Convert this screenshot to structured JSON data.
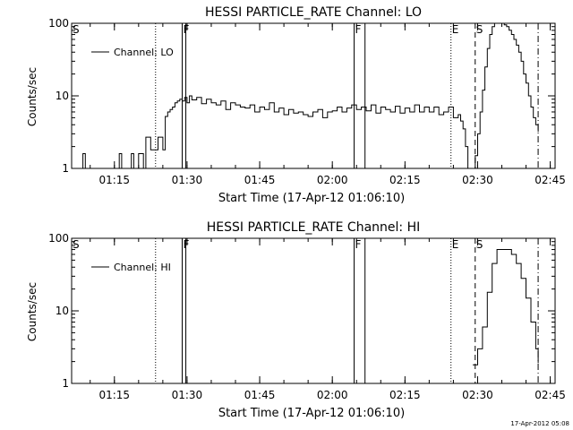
{
  "footer": {
    "timestamp": "17-Apr-2012 05:08"
  },
  "chart_data": [
    {
      "type": "line",
      "title": "HESSI PARTICLE_RATE Channel: LO",
      "xlabel": "Start Time (17-Apr-12 01:06:10)",
      "ylabel": "Counts/sec",
      "y_scale": "log",
      "ylim": [
        1,
        100
      ],
      "xlim": [
        "01:06:10",
        "02:46:00"
      ],
      "x_ticks": [
        "01:15",
        "01:30",
        "01:45",
        "02:00",
        "02:15",
        "02:30",
        "02:45"
      ],
      "y_ticks": [
        "1",
        "10",
        "100"
      ],
      "legend": {
        "entries": [
          "Channel: LO"
        ],
        "position": "top-left"
      },
      "markers": [
        {
          "label": "S",
          "x": "01:06:10",
          "style": "solid"
        },
        {
          "label": "",
          "x": "01:23:30",
          "style": "dotted"
        },
        {
          "label": "F",
          "x": "01:29:00",
          "style": "solid"
        },
        {
          "label": "",
          "x": "01:29:45",
          "style": "solid"
        },
        {
          "label": "F",
          "x": "02:04:30",
          "style": "solid"
        },
        {
          "label": "",
          "x": "02:06:45",
          "style": "solid"
        },
        {
          "label": "E",
          "x": "02:24:30",
          "style": "dotted"
        },
        {
          "label": "S",
          "x": "02:29:30",
          "style": "dashed"
        },
        {
          "label": "",
          "x": "02:42:30",
          "style": "dashdot"
        }
      ],
      "series": [
        {
          "name": "Channel: LO",
          "x": [
            "01:06:10",
            "01:07:00",
            "01:07:30",
            "01:08:00",
            "01:08:30",
            "01:09:00",
            "01:09:30",
            "01:10:00",
            "01:10:30",
            "01:11:00",
            "01:11:30",
            "01:12:00",
            "01:12:30",
            "01:13:00",
            "01:13:30",
            "01:14:00",
            "01:14:30",
            "01:15:00",
            "01:15:30",
            "01:16:00",
            "01:16:30",
            "01:17:00",
            "01:17:30",
            "01:18:00",
            "01:18:30",
            "01:19:00",
            "01:19:30",
            "01:20:00",
            "01:21:00",
            "01:21:30",
            "01:22:00",
            "01:22:30",
            "01:23:00",
            "01:23:30",
            "01:24:00",
            "01:24:30",
            "01:25:00",
            "01:25:30",
            "01:26:00",
            "01:26:30",
            "01:27:00",
            "01:27:30",
            "01:28:00",
            "01:28:30",
            "01:29:00",
            "01:29:30",
            "01:30:00",
            "01:30:30",
            "01:31:00",
            "01:32:00",
            "01:33:00",
            "01:34:00",
            "01:35:00",
            "01:36:00",
            "01:37:00",
            "01:38:00",
            "01:39:00",
            "01:40:00",
            "01:41:00",
            "01:42:00",
            "01:43:00",
            "01:44:00",
            "01:45:00",
            "01:46:00",
            "01:47:00",
            "01:48:00",
            "01:49:00",
            "01:50:00",
            "01:51:00",
            "01:52:00",
            "01:53:00",
            "01:54:00",
            "01:55:00",
            "01:56:00",
            "01:57:00",
            "01:58:00",
            "01:59:00",
            "02:00:00",
            "02:01:00",
            "02:02:00",
            "02:03:00",
            "02:04:00",
            "02:05:00",
            "02:06:00",
            "02:07:00",
            "02:08:00",
            "02:09:00",
            "02:10:00",
            "02:11:00",
            "02:12:00",
            "02:13:00",
            "02:14:00",
            "02:15:00",
            "02:16:00",
            "02:17:00",
            "02:18:00",
            "02:19:00",
            "02:20:00",
            "02:21:00",
            "02:22:00",
            "02:23:00",
            "02:24:00",
            "02:25:00",
            "02:26:00",
            "02:26:30",
            "02:27:00",
            "02:27:30",
            "02:28:00",
            "02:28:30",
            "02:29:00",
            "02:29:30",
            "02:30:00",
            "02:30:30",
            "02:31:00",
            "02:31:30",
            "02:32:00",
            "02:32:30",
            "02:33:00",
            "02:33:30",
            "02:34:00",
            "02:34:30",
            "02:35:00",
            "02:35:30",
            "02:36:00",
            "02:36:30",
            "02:37:00",
            "02:37:30",
            "02:38:00",
            "02:38:30",
            "02:39:00",
            "02:39:30",
            "02:40:00",
            "02:40:30",
            "02:41:00",
            "02:41:30",
            "02:42:00",
            "02:42:30"
          ],
          "y": [
            1,
            1,
            1,
            1,
            1.6,
            1,
            1,
            1,
            1,
            1,
            1,
            1,
            1,
            1,
            1,
            1,
            1,
            1,
            1,
            1.6,
            1,
            1,
            1,
            1,
            1.6,
            1,
            1,
            1.6,
            1,
            2.7,
            2.7,
            1.8,
            1.8,
            1.8,
            2.7,
            2.7,
            1.8,
            5.2,
            6.0,
            6.5,
            7.0,
            8.0,
            8.5,
            9.0,
            8.5,
            9.5,
            8.0,
            10.0,
            8.8,
            9.5,
            7.8,
            9.0,
            8.0,
            7.5,
            8.5,
            6.5,
            8.0,
            7.5,
            7.0,
            6.8,
            7.5,
            6.0,
            7.0,
            6.5,
            8.0,
            6.0,
            6.8,
            5.5,
            6.5,
            5.8,
            6.0,
            5.5,
            5.2,
            6.0,
            6.5,
            5.0,
            6.0,
            6.2,
            7.0,
            6.0,
            6.8,
            7.5,
            6.5,
            7.0,
            6.2,
            7.5,
            5.8,
            7.0,
            6.5,
            6.0,
            7.2,
            5.8,
            6.8,
            6.0,
            7.5,
            6.0,
            7.0,
            6.0,
            7.0,
            5.5,
            6.0,
            7.0,
            5.0,
            5.5,
            4.5,
            3.5,
            2.0,
            1,
            1,
            1,
            1.5,
            3.0,
            6.0,
            12.0,
            25.0,
            45.0,
            70.0,
            90.0,
            100.0,
            100.0,
            100.0,
            100.0,
            95.0,
            90.0,
            80.0,
            70.0,
            60.0,
            50.0,
            40.0,
            30.0,
            20.0,
            15.0,
            10.0,
            7.0,
            5.0,
            4.0,
            3.2
          ]
        }
      ]
    },
    {
      "type": "line",
      "title": "HESSI PARTICLE_RATE Channel: HI",
      "xlabel": "Start Time (17-Apr-12 01:06:10)",
      "ylabel": "Counts/sec",
      "y_scale": "log",
      "ylim": [
        1,
        100
      ],
      "xlim": [
        "01:06:10",
        "02:46:00"
      ],
      "x_ticks": [
        "01:15",
        "01:30",
        "01:45",
        "02:00",
        "02:15",
        "02:30",
        "02:45"
      ],
      "y_ticks": [
        "1",
        "10",
        "100"
      ],
      "legend": {
        "entries": [
          "Channel: HI"
        ],
        "position": "top-left"
      },
      "markers": [
        {
          "label": "S",
          "x": "01:06:10",
          "style": "solid"
        },
        {
          "label": "",
          "x": "01:23:30",
          "style": "dotted"
        },
        {
          "label": "F",
          "x": "01:29:00",
          "style": "solid"
        },
        {
          "label": "",
          "x": "01:29:45",
          "style": "solid"
        },
        {
          "label": "F",
          "x": "02:04:30",
          "style": "solid"
        },
        {
          "label": "",
          "x": "02:06:45",
          "style": "solid"
        },
        {
          "label": "E",
          "x": "02:24:30",
          "style": "dotted"
        },
        {
          "label": "S",
          "x": "02:29:30",
          "style": "dashed"
        },
        {
          "label": "",
          "x": "02:42:30",
          "style": "dashdot"
        }
      ],
      "series": [
        {
          "name": "Channel: HI",
          "x": [
            "02:29:00",
            "02:30:00",
            "02:31:00",
            "02:32:00",
            "02:33:00",
            "02:34:00",
            "02:35:00",
            "02:36:00",
            "02:37:00",
            "02:38:00",
            "02:39:00",
            "02:40:00",
            "02:41:00",
            "02:42:00",
            "02:42:30"
          ],
          "y": [
            1.8,
            3.0,
            6.0,
            18.0,
            45.0,
            70.0,
            70.0,
            70.0,
            60.0,
            45.0,
            28.0,
            15.0,
            7.0,
            3.0,
            1.9
          ]
        }
      ]
    }
  ]
}
